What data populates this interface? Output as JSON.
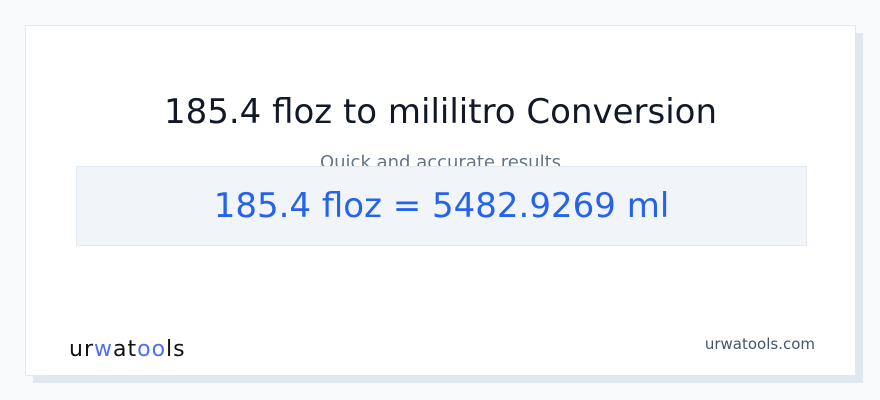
{
  "header": {
    "title": "185.4 floz to mililitro Conversion",
    "subtitle": "Quick and accurate results"
  },
  "result": {
    "text": "185.4 floz = 5482.9269 ml"
  },
  "footer": {
    "logo_text": "urwatools",
    "site": "urwatools.com"
  },
  "colors": {
    "accent": "#2563eb",
    "logo_accent": "#4f6ef7"
  }
}
